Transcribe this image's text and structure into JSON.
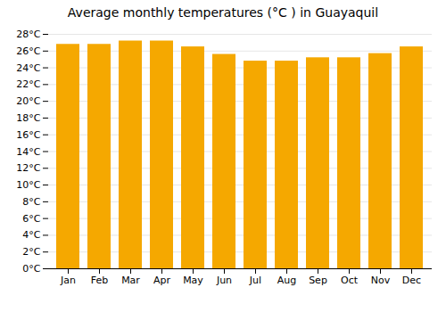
{
  "chart_data": {
    "type": "bar",
    "title": "Average monthly temperatures (°C ) in Guayaquil",
    "categories": [
      "Jan",
      "Feb",
      "Mar",
      "Apr",
      "May",
      "Jun",
      "Jul",
      "Aug",
      "Sep",
      "Oct",
      "Nov",
      "Dec"
    ],
    "values": [
      26.8,
      26.8,
      27.2,
      27.2,
      26.5,
      25.6,
      24.8,
      24.8,
      25.2,
      25.2,
      25.7,
      26.5
    ],
    "color": "#F5A800",
    "ylim": [
      0,
      28
    ],
    "yticks": [
      {
        "value": 0,
        "label": "0°C"
      },
      {
        "value": 2,
        "label": "2°C"
      },
      {
        "value": 4,
        "label": "4°C"
      },
      {
        "value": 6,
        "label": "6°C"
      },
      {
        "value": 8,
        "label": "8°C"
      },
      {
        "value": 10,
        "label": "10°C"
      },
      {
        "value": 12,
        "label": "12°C"
      },
      {
        "value": 14,
        "label": "14°C"
      },
      {
        "value": 16,
        "label": "16°C"
      },
      {
        "value": 18,
        "label": "18°C"
      },
      {
        "value": 20,
        "label": "20°C"
      },
      {
        "value": 22,
        "label": "22°C"
      },
      {
        "value": 24,
        "label": "24°C"
      },
      {
        "value": 26,
        "label": "26°C"
      },
      {
        "value": 28,
        "label": "28°C"
      }
    ],
    "grid": true
  }
}
